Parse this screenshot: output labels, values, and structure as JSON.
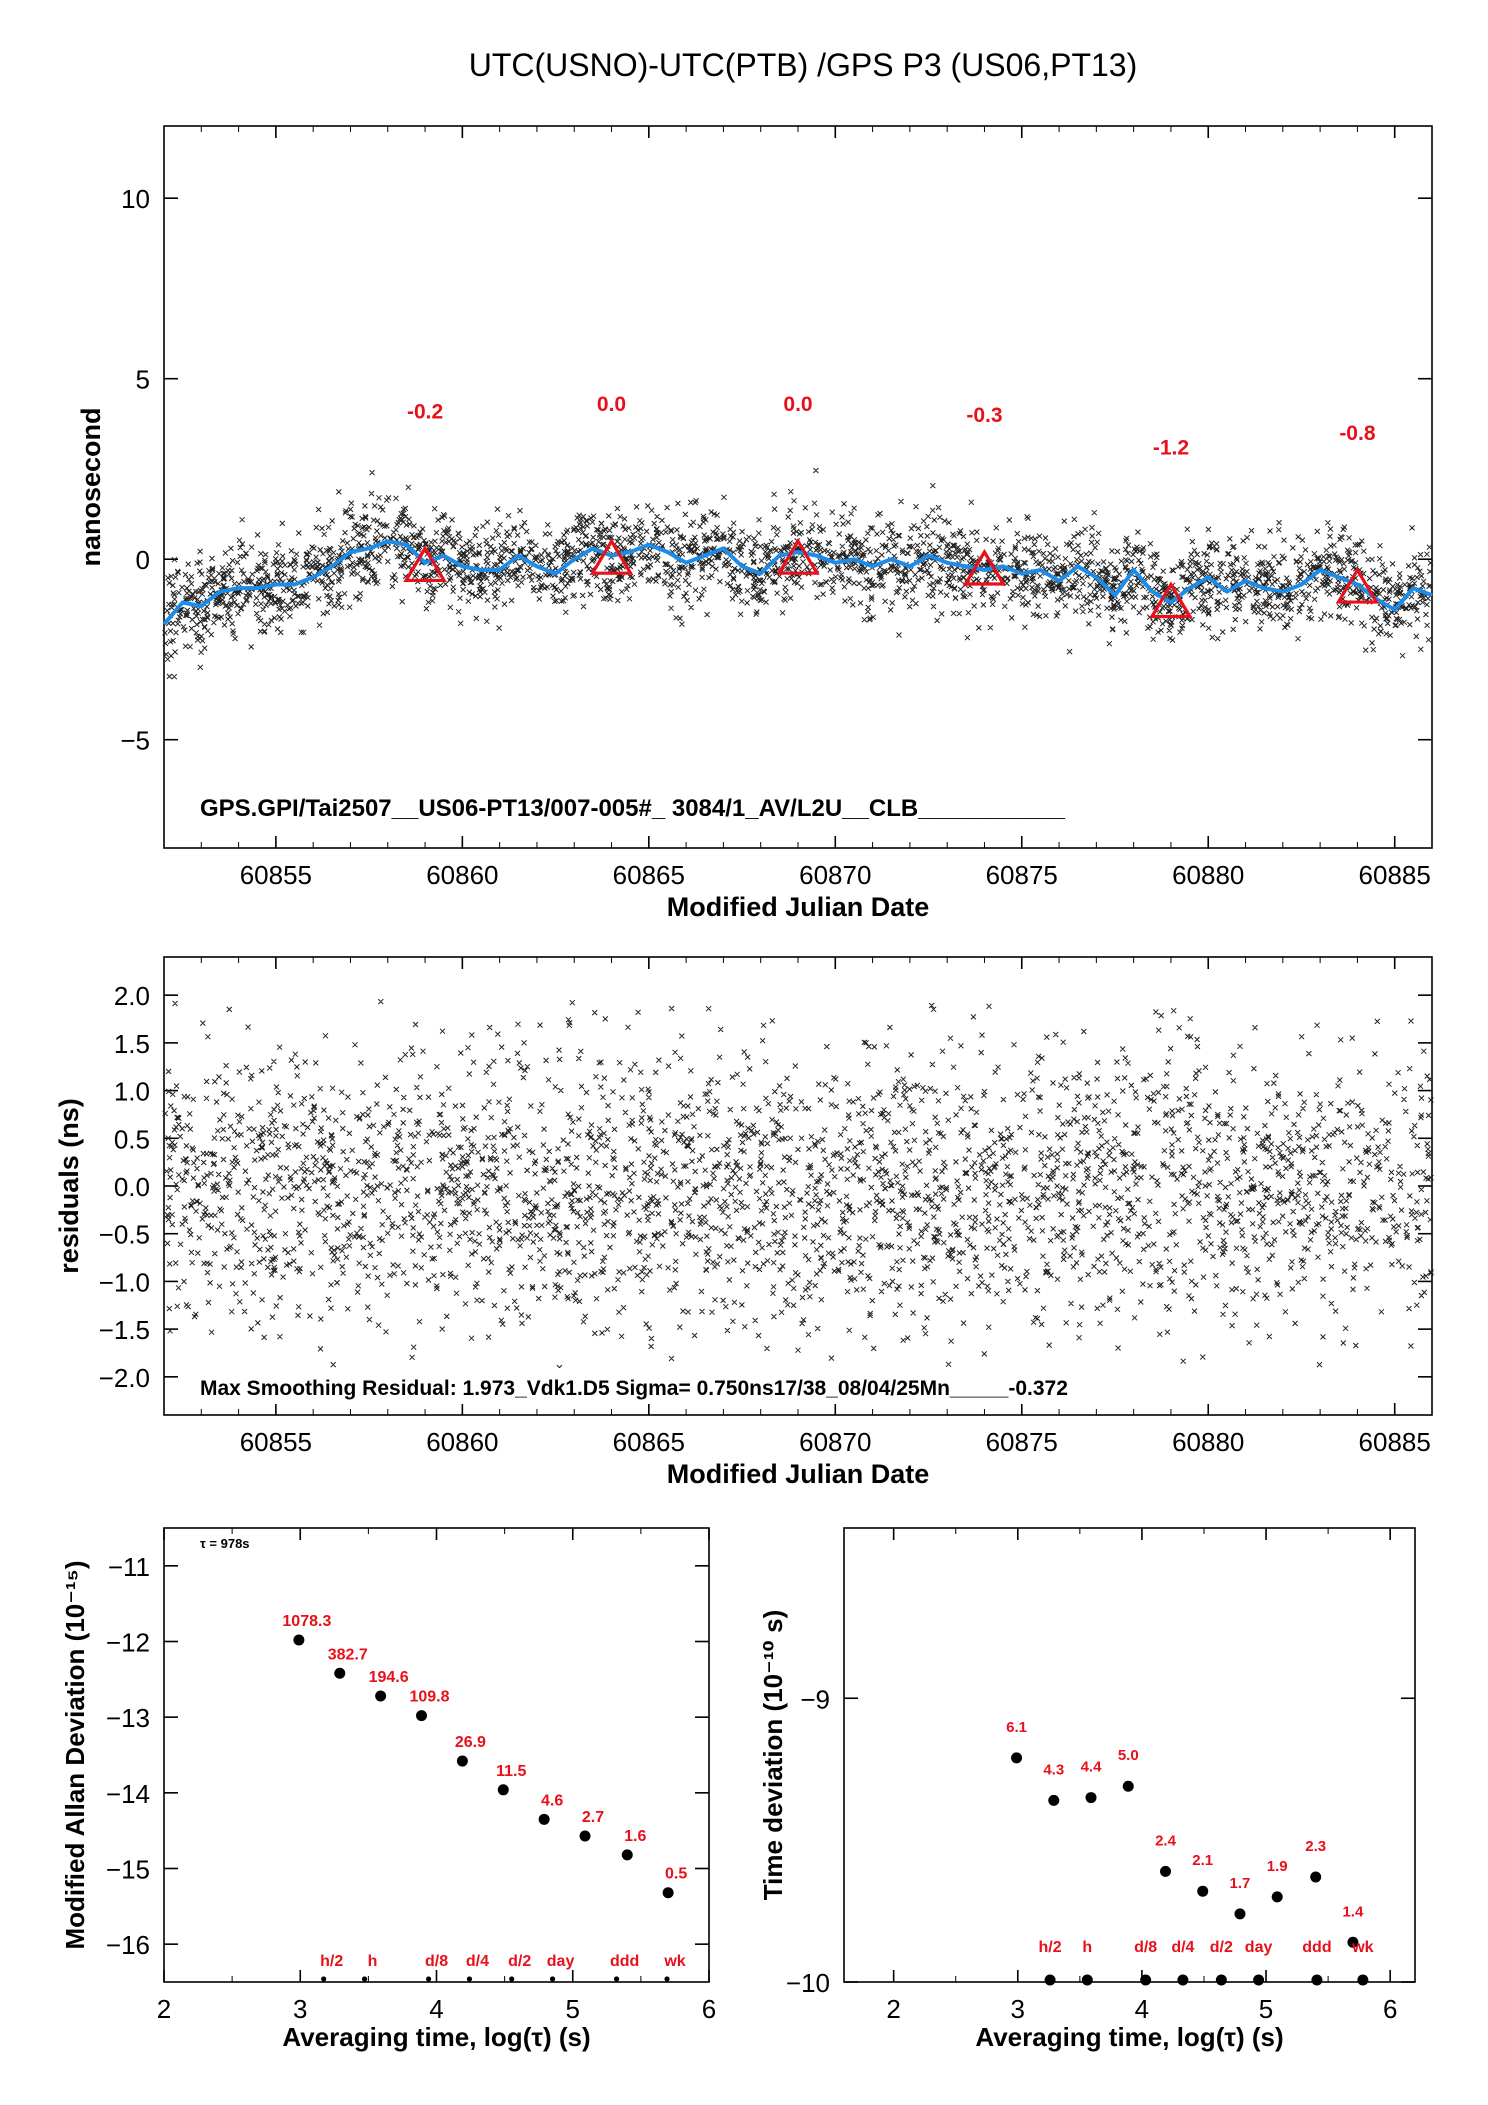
{
  "figure_title": "UTC(USNO)-UTC(PTB)  /GPS  P3  (US06,PT13)",
  "chart_data": [
    {
      "type": "scatter",
      "panel": "time-series",
      "ylabel": "nanosecond",
      "xlabel": "Modified Julian Date",
      "xlim": [
        60852,
        60886
      ],
      "ylim": [
        -8,
        12
      ],
      "x_ticks": [
        60855,
        60860,
        60865,
        60870,
        60875,
        60880,
        60885
      ],
      "x_tick_labels": [
        "60855",
        "60860",
        "60865",
        "60870",
        "60875",
        "60880",
        "60885"
      ],
      "y_ticks": [
        -5,
        0,
        5,
        10
      ],
      "y_tick_labels": [
        "−5",
        "0",
        "5",
        "10"
      ],
      "footer_text": "GPS.GPI/Tai2507__US06-PT13/007-005#_  3084/1_AV/L2U__CLB___________",
      "smoothed_curve": {
        "color": "#1e8ce6",
        "x": [
          60852.0,
          60852.5,
          60853.0,
          60853.5,
          60854.0,
          60854.5,
          60855.0,
          60855.5,
          60856.0,
          60856.5,
          60857.0,
          60857.5,
          60858.0,
          60858.5,
          60859.0,
          60859.5,
          60860.0,
          60860.5,
          60861.0,
          60861.5,
          60862.0,
          60862.5,
          60863.0,
          60863.5,
          60864.0,
          60864.5,
          60865.0,
          60865.5,
          60866.0,
          60866.5,
          60867.0,
          60867.5,
          60868.0,
          60868.5,
          60869.0,
          60869.5,
          60870.0,
          60870.5,
          60871.0,
          60871.5,
          60872.0,
          60872.5,
          60873.0,
          60873.5,
          60874.0,
          60874.5,
          60875.0,
          60875.5,
          60876.0,
          60876.5,
          60877.0,
          60877.5,
          60878.0,
          60878.5,
          60879.0,
          60879.5,
          60880.0,
          60880.5,
          60881.0,
          60881.5,
          60882.0,
          60882.5,
          60883.0,
          60883.5,
          60884.0,
          60884.5,
          60885.0,
          60885.5,
          60886.0
        ],
        "y": [
          -1.8,
          -1.2,
          -1.3,
          -0.9,
          -0.8,
          -0.8,
          -0.7,
          -0.7,
          -0.5,
          -0.2,
          0.2,
          0.3,
          0.5,
          0.4,
          -0.1,
          0.1,
          -0.2,
          -0.3,
          -0.3,
          0.1,
          -0.2,
          -0.4,
          0.0,
          0.3,
          0.1,
          0.2,
          0.4,
          0.2,
          -0.1,
          0.1,
          0.3,
          -0.2,
          -0.4,
          0.1,
          0.2,
          0.1,
          -0.1,
          0.0,
          -0.2,
          0.0,
          -0.2,
          0.1,
          -0.1,
          -0.2,
          -0.3,
          -0.2,
          -0.4,
          -0.3,
          -0.6,
          -0.2,
          -0.5,
          -1.0,
          -0.3,
          -0.9,
          -1.2,
          -0.8,
          -0.5,
          -0.9,
          -0.6,
          -0.8,
          -0.9,
          -0.7,
          -0.3,
          -0.5,
          -0.7,
          -1.1,
          -1.4,
          -0.8,
          -1.0
        ]
      },
      "markers": [
        {
          "x": 60859,
          "y": -0.2,
          "label": "-0.2"
        },
        {
          "x": 60864,
          "y": 0.0,
          "label": "0.0"
        },
        {
          "x": 60869,
          "y": 0.0,
          "label": "0.0"
        },
        {
          "x": 60874,
          "y": -0.3,
          "label": "-0.3"
        },
        {
          "x": 60879,
          "y": -1.2,
          "label": "-1.2"
        },
        {
          "x": 60884,
          "y": -0.8,
          "label": "-0.8"
        }
      ],
      "marker_color": "#e8101a",
      "scatter_description_points": 3084,
      "scatter_band_halfwidth": 0.75
    },
    {
      "type": "scatter",
      "panel": "residuals",
      "ylabel": "residuals (ns)",
      "xlabel": "Modified Julian Date",
      "xlim": [
        60852,
        60886
      ],
      "ylim": [
        -2.4,
        2.4
      ],
      "x_ticks": [
        60855,
        60860,
        60865,
        60870,
        60875,
        60880,
        60885
      ],
      "x_tick_labels": [
        "60855",
        "60860",
        "60865",
        "60870",
        "60875",
        "60880",
        "60885"
      ],
      "y_ticks": [
        -2.0,
        -1.5,
        -1.0,
        -0.5,
        0.0,
        0.5,
        1.0,
        1.5,
        2.0
      ],
      "y_tick_labels": [
        "−2.0",
        "−1.5",
        "−1.0",
        "−0.5",
        "0.0",
        "0.5",
        "1.0",
        "1.5",
        "2.0"
      ],
      "footer_text": "Max Smoothing Residual: 1.973_Vdk1.D5  Sigma= 0.750ns17/38_08/04/25Mn_____-0.372",
      "sigma": 0.75
    },
    {
      "type": "scatter",
      "panel": "modified-allan-deviation",
      "ylabel": "Modified Allan Deviation (10⁻¹⁵)",
      "xlabel": "Averaging time, log(τ) (s)",
      "xlim": [
        2,
        6
      ],
      "ylim": [
        -16.5,
        -10.5
      ],
      "x_ticks": [
        2,
        3,
        4,
        5,
        6
      ],
      "x_tick_labels": [
        "2",
        "3",
        "4",
        "5",
        "6"
      ],
      "y_ticks": [
        -16,
        -15,
        -14,
        -13,
        -12,
        -11
      ],
      "y_tick_labels": [
        "−16",
        "−15",
        "−14",
        "−13",
        "−12",
        "−11"
      ],
      "annotation": "τ = 978s",
      "x": [
        2.99,
        3.29,
        3.59,
        3.89,
        4.19,
        4.49,
        4.79,
        5.09,
        5.4,
        5.7
      ],
      "y": [
        -11.98,
        -12.42,
        -12.72,
        -12.98,
        -13.58,
        -13.96,
        -14.35,
        -14.57,
        -14.82,
        -15.32
      ],
      "labels": [
        "1078.3",
        "382.7",
        "194.6",
        "109.8",
        "26.9",
        "11.5",
        "4.6",
        "2.7",
        "1.6",
        "0.5"
      ],
      "reference_marks": {
        "x": [
          3.26,
          3.56,
          4.03,
          4.33,
          4.64,
          4.94,
          5.41,
          5.78
        ],
        "labels": [
          "h/2",
          "h",
          "d/8",
          "d/4",
          "d/2",
          "day",
          "ddd",
          "wk"
        ]
      }
    },
    {
      "type": "scatter",
      "panel": "time-deviation",
      "ylabel": "Time deviation (10⁻¹⁰ s)",
      "xlabel": "Averaging time, log(τ) (s)",
      "xlim": [
        1.6,
        6.2
      ],
      "ylim": [
        -10,
        -8.4
      ],
      "x_ticks": [
        2,
        3,
        4,
        5,
        6
      ],
      "x_tick_labels": [
        "2",
        "3",
        "4",
        "5",
        "6"
      ],
      "y_ticks": [
        -10,
        -9
      ],
      "y_tick_labels": [
        "−10",
        "−9"
      ],
      "x": [
        2.99,
        3.29,
        3.59,
        3.89,
        4.19,
        4.49,
        4.79,
        5.09,
        5.4,
        5.7
      ],
      "y": [
        -9.21,
        -9.36,
        -9.35,
        -9.31,
        -9.61,
        -9.68,
        -9.76,
        -9.7,
        -9.63,
        -9.86
      ],
      "labels": [
        "6.1",
        "4.3",
        "4.4",
        "5.0",
        "2.4",
        "2.1",
        "1.7",
        "1.9",
        "2.3",
        "1.4"
      ],
      "reference_marks": {
        "x": [
          3.26,
          3.56,
          4.03,
          4.33,
          4.64,
          4.94,
          5.41,
          5.78
        ],
        "labels": [
          "h/2",
          "h",
          "d/8",
          "d/4",
          "d/2",
          "day",
          "ddd",
          "wk"
        ]
      }
    }
  ]
}
